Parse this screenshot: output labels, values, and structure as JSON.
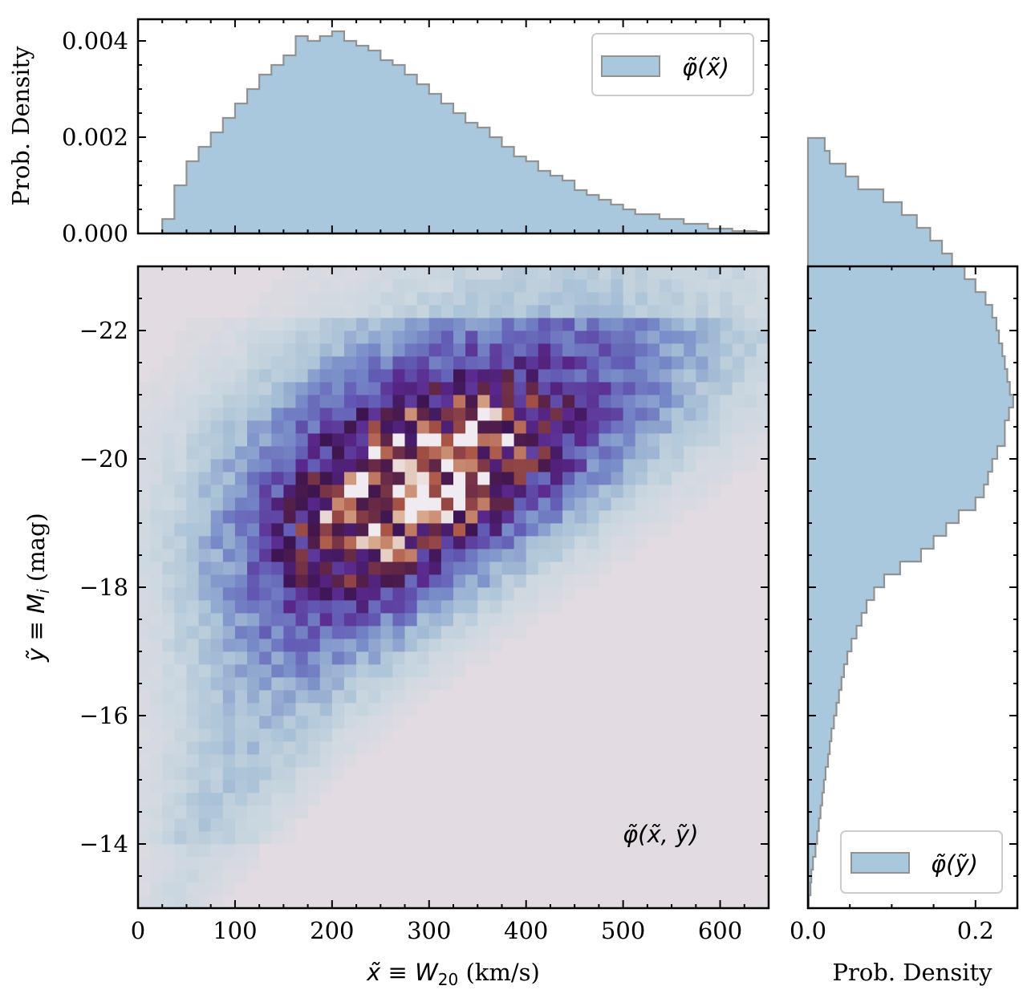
{
  "chart_data": [
    {
      "type": "bar",
      "panel": "top-marginal",
      "ylabel": "Prob. Density",
      "xlim": [
        0,
        650
      ],
      "ylim": [
        0,
        0.00445
      ],
      "yticks": [
        0,
        0.002,
        0.004
      ],
      "ytick_labels": [
        "0.000",
        "0.002",
        "0.004"
      ],
      "legend": {
        "label": "φ̃(x̃)",
        "position": "top-right"
      },
      "bin_width": 12.5,
      "bin_start": 25,
      "values": [
        0.0003,
        0.001,
        0.0015,
        0.0018,
        0.0021,
        0.0024,
        0.0027,
        0.003,
        0.0033,
        0.0035,
        0.0037,
        0.0041,
        0.004,
        0.0041,
        0.0042,
        0.004,
        0.0039,
        0.0038,
        0.0036,
        0.0035,
        0.0033,
        0.0031,
        0.0029,
        0.0027,
        0.0025,
        0.0023,
        0.0022,
        0.002,
        0.0018,
        0.0016,
        0.0015,
        0.0013,
        0.0012,
        0.0011,
        0.0009,
        0.0008,
        0.0007,
        0.0006,
        0.0005,
        0.0004,
        0.0004,
        0.0003,
        0.0003,
        0.0002,
        0.0002,
        0.0001,
        0.0001,
        5e-05,
        5e-05,
        3e-05
      ]
    },
    {
      "type": "heatmap",
      "panel": "joint",
      "xlabel": "x̃ ≡ W20 (km/s)",
      "ylabel": "ỹ ≡ Mi (mag)",
      "xlim": [
        0,
        650
      ],
      "ylim": [
        -13,
        -23
      ],
      "xticks": [
        0,
        100,
        200,
        300,
        400,
        500,
        600
      ],
      "yticks": [
        -14,
        -16,
        -18,
        -20,
        -22
      ],
      "ytick_labels": [
        "−14",
        "−16",
        "−18",
        "−20",
        "−22"
      ],
      "annotation": "φ̃(x̃, ỹ)",
      "colormap": "twilight",
      "bins": {
        "x_width": 12.5,
        "y_width": 0.2
      }
    },
    {
      "type": "bar",
      "panel": "right-marginal",
      "orientation": "horizontal",
      "xlabel": "Prob. Density",
      "xlim": [
        0,
        0.25
      ],
      "xticks": [
        0,
        0.2
      ],
      "xtick_labels": [
        "0.0",
        "0.2"
      ],
      "ylim": [
        -13,
        -23
      ],
      "legend": {
        "label": "φ̃(ỹ)",
        "position": "lower-right"
      },
      "bin_width": 0.2,
      "bin_start": -13,
      "values": [
        0.001,
        0.003,
        0.004,
        0.006,
        0.009,
        0.011,
        0.013,
        0.015,
        0.017,
        0.019,
        0.021,
        0.024,
        0.026,
        0.028,
        0.031,
        0.034,
        0.037,
        0.04,
        0.043,
        0.047,
        0.052,
        0.058,
        0.064,
        0.07,
        0.079,
        0.091,
        0.11,
        0.135,
        0.15,
        0.165,
        0.18,
        0.2,
        0.21,
        0.215,
        0.22,
        0.226,
        0.235,
        0.235,
        0.24,
        0.245,
        0.241,
        0.238,
        0.235,
        0.232,
        0.228,
        0.225,
        0.22,
        0.212,
        0.2,
        0.187,
        0.172,
        0.16,
        0.146,
        0.13,
        0.112,
        0.09,
        0.06,
        0.045,
        0.026,
        0.02
      ]
    }
  ]
}
